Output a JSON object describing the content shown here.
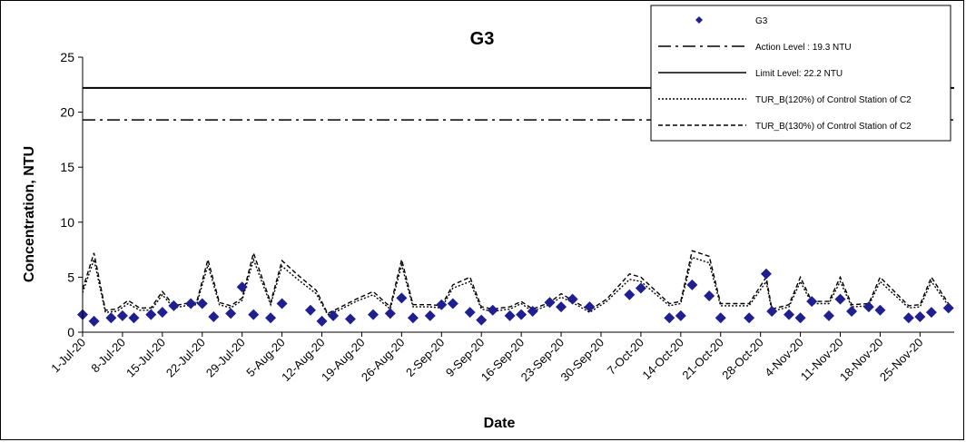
{
  "chart_data": {
    "type": "scatter",
    "title": "G3",
    "xlabel": "Date",
    "ylabel": "Concentration, NTU",
    "ylim": [
      0,
      25
    ],
    "y_ticks": [
      "0",
      "5",
      "10",
      "15",
      "20",
      "25"
    ],
    "x_tick_labels": [
      "1-Jul-20",
      "8-Jul-20",
      "15-Jul-20",
      "22-Jul-20",
      "29-Jul-20",
      "5-Aug-20",
      "12-Aug-20",
      "19-Aug-20",
      "26-Aug-20",
      "2-Sep-20",
      "9-Sep-20",
      "16-Sep-20",
      "23-Sep-20",
      "30-Sep-20",
      "7-Oct-20",
      "14-Oct-20",
      "21-Oct-20",
      "28-Oct-20",
      "4-Nov-20",
      "11-Nov-20",
      "18-Nov-20",
      "25-Nov-20"
    ],
    "x_range": [
      "2020-07-01",
      "2020-12-01"
    ],
    "grid": false,
    "legend_position": "top-right",
    "legend": [
      {
        "label": "G3",
        "style": "marker"
      },
      {
        "label": "Action Level : 19.3 NTU",
        "style": "dashdot"
      },
      {
        "label": "Limit Level: 22.2 NTU",
        "style": "solid"
      },
      {
        "label": "TUR_B(120%) of Control Station of C2",
        "style": "dotted"
      },
      {
        "label": "TUR_B(130%) of Control Station of C2",
        "style": "dashed"
      }
    ],
    "action_level": 19.3,
    "limit_level": 22.2,
    "colors": {
      "marker": "#1f1f8f",
      "lines": "#000000"
    },
    "series": [
      {
        "name": "G3",
        "points": [
          [
            "2020-07-01",
            1.6
          ],
          [
            "2020-07-03",
            1.0
          ],
          [
            "2020-07-06",
            1.3
          ],
          [
            "2020-07-08",
            1.5
          ],
          [
            "2020-07-10",
            1.3
          ],
          [
            "2020-07-13",
            1.6
          ],
          [
            "2020-07-15",
            1.8
          ],
          [
            "2020-07-17",
            2.4
          ],
          [
            "2020-07-20",
            2.6
          ],
          [
            "2020-07-22",
            2.6
          ],
          [
            "2020-07-24",
            1.4
          ],
          [
            "2020-07-27",
            1.7
          ],
          [
            "2020-07-29",
            4.1
          ],
          [
            "2020-07-31",
            1.6
          ],
          [
            "2020-08-03",
            1.3
          ],
          [
            "2020-08-05",
            2.6
          ],
          [
            "2020-08-10",
            2.0
          ],
          [
            "2020-08-12",
            1.0
          ],
          [
            "2020-08-14",
            1.5
          ],
          [
            "2020-08-17",
            1.2
          ],
          [
            "2020-08-21",
            1.6
          ],
          [
            "2020-08-24",
            1.7
          ],
          [
            "2020-08-26",
            3.1
          ],
          [
            "2020-08-28",
            1.3
          ],
          [
            "2020-08-31",
            1.5
          ],
          [
            "2020-09-02",
            2.5
          ],
          [
            "2020-09-04",
            2.6
          ],
          [
            "2020-09-07",
            1.8
          ],
          [
            "2020-09-09",
            1.1
          ],
          [
            "2020-09-11",
            2.0
          ],
          [
            "2020-09-14",
            1.5
          ],
          [
            "2020-09-16",
            1.6
          ],
          [
            "2020-09-18",
            1.9
          ],
          [
            "2020-09-21",
            2.7
          ],
          [
            "2020-09-23",
            2.3
          ],
          [
            "2020-09-25",
            3.0
          ],
          [
            "2020-09-28",
            2.3
          ],
          [
            "2020-10-05",
            3.4
          ],
          [
            "2020-10-07",
            4.0
          ],
          [
            "2020-10-12",
            1.3
          ],
          [
            "2020-10-14",
            1.5
          ],
          [
            "2020-10-16",
            4.3
          ],
          [
            "2020-10-19",
            3.3
          ],
          [
            "2020-10-21",
            1.3
          ],
          [
            "2020-10-26",
            1.3
          ],
          [
            "2020-10-29",
            5.3
          ],
          [
            "2020-10-30",
            1.9
          ],
          [
            "2020-11-02",
            1.6
          ],
          [
            "2020-11-04",
            1.3
          ],
          [
            "2020-11-06",
            2.8
          ],
          [
            "2020-11-09",
            1.5
          ],
          [
            "2020-11-11",
            3.0
          ],
          [
            "2020-11-13",
            1.9
          ],
          [
            "2020-11-16",
            2.3
          ],
          [
            "2020-11-18",
            2.0
          ],
          [
            "2020-11-23",
            1.3
          ],
          [
            "2020-11-25",
            1.4
          ],
          [
            "2020-11-27",
            1.8
          ],
          [
            "2020-11-30",
            2.2
          ]
        ]
      },
      {
        "name": "TUR_B(120%) of Control Station of C2",
        "points": [
          [
            "2020-07-01",
            3.6
          ],
          [
            "2020-07-03",
            6.6
          ],
          [
            "2020-07-05",
            1.8
          ],
          [
            "2020-07-07",
            1.9
          ],
          [
            "2020-07-09",
            2.6
          ],
          [
            "2020-07-11",
            2.0
          ],
          [
            "2020-07-13",
            2.0
          ],
          [
            "2020-07-15",
            3.4
          ],
          [
            "2020-07-17",
            2.2
          ],
          [
            "2020-07-19",
            2.4
          ],
          [
            "2020-07-21",
            2.5
          ],
          [
            "2020-07-23",
            6.1
          ],
          [
            "2020-07-25",
            2.5
          ],
          [
            "2020-07-27",
            2.2
          ],
          [
            "2020-07-29",
            2.9
          ],
          [
            "2020-07-31",
            6.6
          ],
          [
            "2020-08-03",
            2.5
          ],
          [
            "2020-08-05",
            6.0
          ],
          [
            "2020-08-08",
            4.7
          ],
          [
            "2020-08-11",
            3.5
          ],
          [
            "2020-08-13",
            1.6
          ],
          [
            "2020-08-15",
            2.0
          ],
          [
            "2020-08-18",
            2.8
          ],
          [
            "2020-08-21",
            3.4
          ],
          [
            "2020-08-24",
            2.1
          ],
          [
            "2020-08-26",
            6.1
          ],
          [
            "2020-08-28",
            2.3
          ],
          [
            "2020-08-31",
            2.3
          ],
          [
            "2020-09-02",
            2.2
          ],
          [
            "2020-09-04",
            4.0
          ],
          [
            "2020-09-07",
            4.6
          ],
          [
            "2020-09-09",
            2.1
          ],
          [
            "2020-09-11",
            1.9
          ],
          [
            "2020-09-14",
            2.1
          ],
          [
            "2020-09-16",
            2.6
          ],
          [
            "2020-09-18",
            1.9
          ],
          [
            "2020-09-21",
            2.5
          ],
          [
            "2020-09-23",
            3.2
          ],
          [
            "2020-09-25",
            2.7
          ],
          [
            "2020-09-28",
            1.8
          ],
          [
            "2020-10-01",
            2.8
          ],
          [
            "2020-10-05",
            4.8
          ],
          [
            "2020-10-07",
            4.6
          ],
          [
            "2020-10-12",
            2.4
          ],
          [
            "2020-10-14",
            2.6
          ],
          [
            "2020-10-16",
            6.8
          ],
          [
            "2020-10-19",
            6.3
          ],
          [
            "2020-10-21",
            2.4
          ],
          [
            "2020-10-26",
            2.4
          ],
          [
            "2020-10-29",
            4.6
          ],
          [
            "2020-10-30",
            1.9
          ],
          [
            "2020-11-02",
            2.3
          ],
          [
            "2020-11-04",
            4.6
          ],
          [
            "2020-11-06",
            2.6
          ],
          [
            "2020-11-09",
            2.6
          ],
          [
            "2020-11-11",
            4.6
          ],
          [
            "2020-11-13",
            2.3
          ],
          [
            "2020-11-16",
            2.4
          ],
          [
            "2020-11-18",
            4.6
          ],
          [
            "2020-11-23",
            2.2
          ],
          [
            "2020-11-25",
            2.3
          ],
          [
            "2020-11-27",
            4.6
          ],
          [
            "2020-11-30",
            2.4
          ]
        ]
      },
      {
        "name": "TUR_B(130%) of Control Station of C2",
        "points": [
          [
            "2020-07-01",
            3.9
          ],
          [
            "2020-07-03",
            7.2
          ],
          [
            "2020-07-05",
            2.0
          ],
          [
            "2020-07-07",
            2.1
          ],
          [
            "2020-07-09",
            2.9
          ],
          [
            "2020-07-11",
            2.2
          ],
          [
            "2020-07-13",
            2.2
          ],
          [
            "2020-07-15",
            3.7
          ],
          [
            "2020-07-17",
            2.4
          ],
          [
            "2020-07-19",
            2.6
          ],
          [
            "2020-07-21",
            2.7
          ],
          [
            "2020-07-23",
            6.6
          ],
          [
            "2020-07-25",
            2.7
          ],
          [
            "2020-07-27",
            2.4
          ],
          [
            "2020-07-29",
            3.1
          ],
          [
            "2020-07-31",
            7.2
          ],
          [
            "2020-08-03",
            2.7
          ],
          [
            "2020-08-05",
            6.5
          ],
          [
            "2020-08-08",
            5.1
          ],
          [
            "2020-08-11",
            3.8
          ],
          [
            "2020-08-13",
            1.7
          ],
          [
            "2020-08-15",
            2.2
          ],
          [
            "2020-08-18",
            3.0
          ],
          [
            "2020-08-21",
            3.7
          ],
          [
            "2020-08-24",
            2.3
          ],
          [
            "2020-08-26",
            6.6
          ],
          [
            "2020-08-28",
            2.5
          ],
          [
            "2020-08-31",
            2.5
          ],
          [
            "2020-09-02",
            2.4
          ],
          [
            "2020-09-04",
            4.3
          ],
          [
            "2020-09-07",
            5.0
          ],
          [
            "2020-09-09",
            2.3
          ],
          [
            "2020-09-11",
            2.1
          ],
          [
            "2020-09-14",
            2.3
          ],
          [
            "2020-09-16",
            2.8
          ],
          [
            "2020-09-18",
            2.1
          ],
          [
            "2020-09-21",
            2.7
          ],
          [
            "2020-09-23",
            3.5
          ],
          [
            "2020-09-25",
            2.9
          ],
          [
            "2020-09-28",
            2.0
          ],
          [
            "2020-10-01",
            3.0
          ],
          [
            "2020-10-05",
            5.3
          ],
          [
            "2020-10-07",
            5.0
          ],
          [
            "2020-10-12",
            2.6
          ],
          [
            "2020-10-14",
            2.8
          ],
          [
            "2020-10-16",
            7.4
          ],
          [
            "2020-10-19",
            6.9
          ],
          [
            "2020-10-21",
            2.6
          ],
          [
            "2020-10-26",
            2.6
          ],
          [
            "2020-10-29",
            5.0
          ],
          [
            "2020-10-30",
            2.1
          ],
          [
            "2020-11-02",
            2.5
          ],
          [
            "2020-11-04",
            5.0
          ],
          [
            "2020-11-06",
            2.8
          ],
          [
            "2020-11-09",
            2.8
          ],
          [
            "2020-11-11",
            5.0
          ],
          [
            "2020-11-13",
            2.5
          ],
          [
            "2020-11-16",
            2.6
          ],
          [
            "2020-11-18",
            5.0
          ],
          [
            "2020-11-23",
            2.4
          ],
          [
            "2020-11-25",
            2.5
          ],
          [
            "2020-11-27",
            5.0
          ],
          [
            "2020-11-30",
            2.6
          ]
        ]
      }
    ]
  }
}
